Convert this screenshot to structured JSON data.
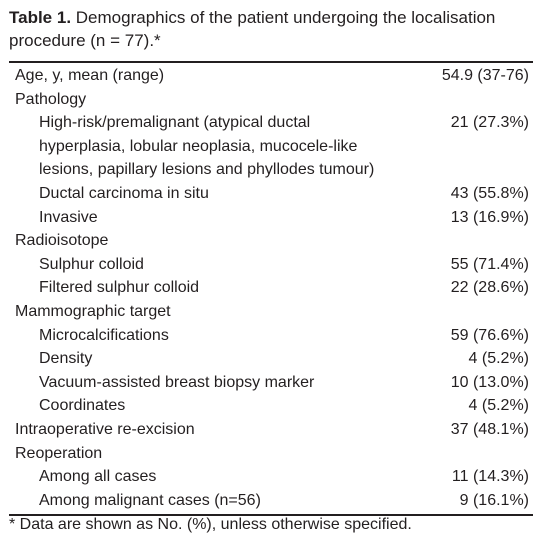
{
  "caption": {
    "label": "Table 1.",
    "text": "Demographics of the patient undergoing the localisation procedure (n = 77).*"
  },
  "table": {
    "sections": [
      {
        "label": "Age, y, mean (range)",
        "value": "54.9 (37-76)",
        "items": []
      },
      {
        "label": "Pathology",
        "items": [
          {
            "label": "High-risk/premalignant (atypical ductal hyperplasia, lobular neoplasia, mucocele-like lesions, papillary lesions and phyllodes tumour)",
            "value": "21 (27.3%)"
          },
          {
            "label": "Ductal carcinoma in situ",
            "value": "43 (55.8%)"
          },
          {
            "label": "Invasive",
            "value": "13 (16.9%)"
          }
        ]
      },
      {
        "label": "Radioisotope",
        "items": [
          {
            "label": "Sulphur colloid",
            "value": "55 (71.4%)"
          },
          {
            "label": "Filtered sulphur colloid",
            "value": "22 (28.6%)"
          }
        ]
      },
      {
        "label": "Mammographic target",
        "items": [
          {
            "label": "Microcalcifications",
            "value": "59 (76.6%)"
          },
          {
            "label": "Density",
            "value": "4 (5.2%)"
          },
          {
            "label": "Vacuum-assisted breast biopsy marker",
            "value": "10 (13.0%)"
          },
          {
            "label": "Coordinates",
            "value": "4 (5.2%)"
          }
        ]
      },
      {
        "label": "Intraoperative re-excision",
        "value": "37 (48.1%)",
        "items": []
      },
      {
        "label": "Reoperation",
        "items": [
          {
            "label": "Among all cases",
            "value": "11 (14.3%)"
          },
          {
            "label": "Among malignant cases (n=56)",
            "value": "9 (16.1%)"
          }
        ]
      }
    ]
  },
  "footnote": "* Data are shown as No. (%), unless otherwise specified."
}
